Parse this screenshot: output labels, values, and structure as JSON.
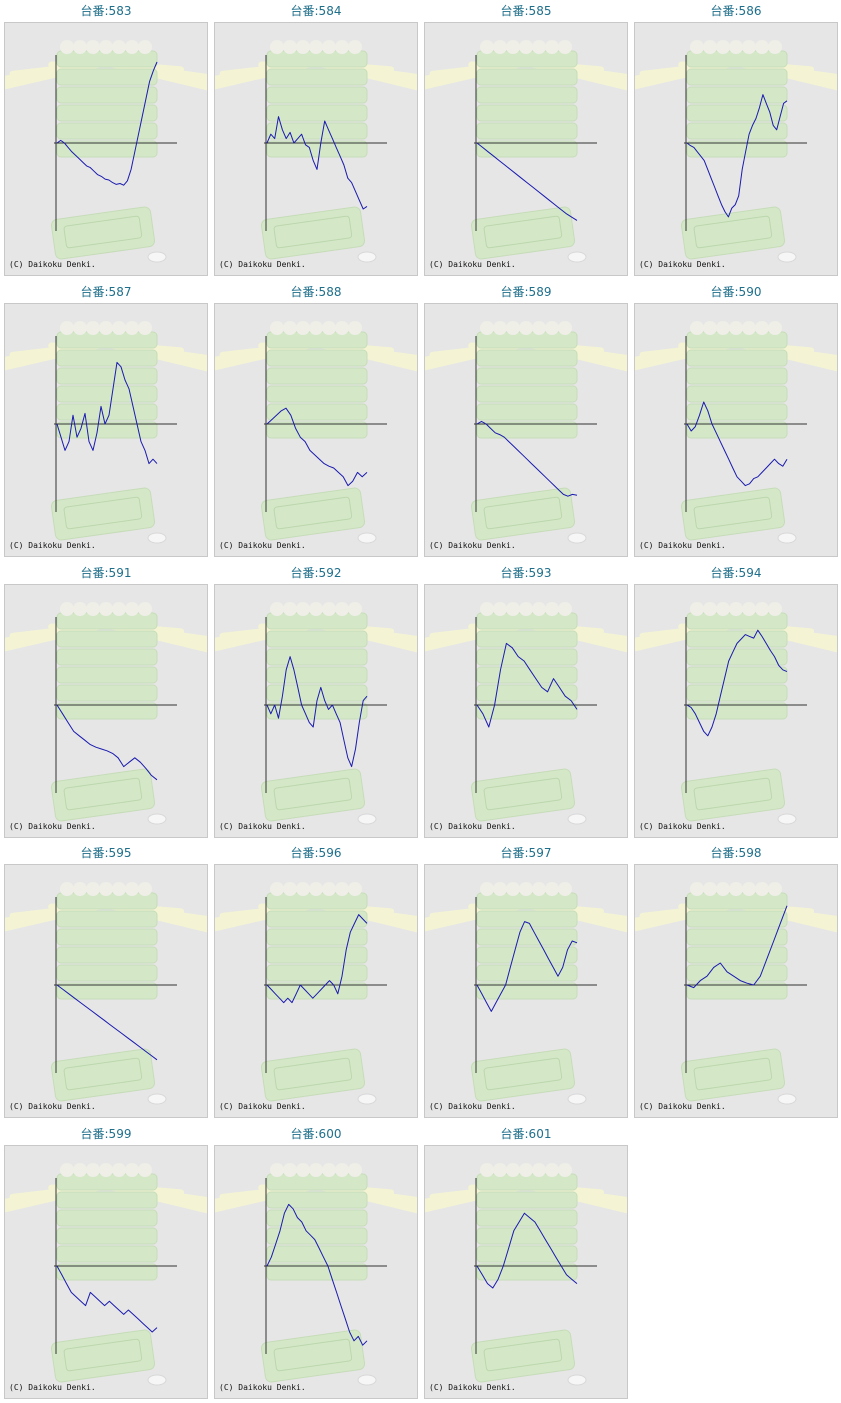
{
  "copyright": "(C) Daikoku Denki.",
  "colors": {
    "line": "#1a1ab0",
    "axis": "#333333",
    "title": "#1f6f8b",
    "panel_bg": "#e6e6e6",
    "art_green": "#d4e8c8",
    "art_rays": "#f4f4d4"
  },
  "chart_data": [
    {
      "type": "line",
      "title": "台番:583",
      "values": [
        0.0,
        0.03,
        0.0,
        -0.05,
        -0.1,
        -0.14,
        -0.18,
        -0.22,
        -0.26,
        -0.28,
        -0.32,
        -0.36,
        -0.38,
        -0.41,
        -0.42,
        -0.45,
        -0.47,
        -0.46,
        -0.48,
        -0.43,
        -0.3,
        -0.1,
        0.1,
        0.3,
        0.5,
        0.7,
        0.82,
        0.92
      ]
    },
    {
      "type": "line",
      "title": "台番:584",
      "values": [
        0.0,
        0.1,
        0.05,
        0.3,
        0.15,
        0.05,
        0.12,
        0.0,
        0.05,
        0.1,
        -0.02,
        -0.05,
        -0.2,
        -0.3,
        0.0,
        0.25,
        0.15,
        0.05,
        -0.05,
        -0.15,
        -0.25,
        -0.4,
        -0.45,
        -0.55,
        -0.65,
        -0.75,
        -0.72
      ]
    },
    {
      "type": "line",
      "title": "台番:585",
      "values": [
        0.0,
        -0.05,
        -0.1,
        -0.15,
        -0.2,
        -0.25,
        -0.3,
        -0.35,
        -0.4,
        -0.45,
        -0.5,
        -0.55,
        -0.6,
        -0.65,
        -0.7,
        -0.75,
        -0.8,
        -0.84,
        -0.88
      ]
    },
    {
      "type": "line",
      "title": "台番:586",
      "values": [
        0.0,
        -0.03,
        -0.05,
        -0.1,
        -0.15,
        -0.2,
        -0.3,
        -0.4,
        -0.5,
        -0.6,
        -0.7,
        -0.78,
        -0.84,
        -0.74,
        -0.7,
        -0.6,
        -0.3,
        -0.1,
        0.1,
        0.2,
        0.28,
        0.4,
        0.55,
        0.45,
        0.35,
        0.2,
        0.15,
        0.3,
        0.45,
        0.48
      ]
    },
    {
      "type": "line",
      "title": "台番:587",
      "values": [
        0.0,
        -0.15,
        -0.3,
        -0.2,
        0.1,
        -0.15,
        -0.05,
        0.12,
        -0.2,
        -0.3,
        -0.1,
        0.2,
        0.0,
        0.1,
        0.4,
        0.7,
        0.65,
        0.5,
        0.4,
        0.2,
        0.0,
        -0.2,
        -0.3,
        -0.45,
        -0.4,
        -0.45
      ]
    },
    {
      "type": "line",
      "title": "台番:588",
      "values": [
        0.0,
        0.05,
        0.1,
        0.15,
        0.18,
        0.1,
        -0.05,
        -0.15,
        -0.2,
        -0.3,
        -0.35,
        -0.4,
        -0.45,
        -0.48,
        -0.5,
        -0.55,
        -0.6,
        -0.7,
        -0.65,
        -0.55,
        -0.6,
        -0.55
      ]
    },
    {
      "type": "line",
      "title": "台番:589",
      "values": [
        0.0,
        0.03,
        0.0,
        -0.05,
        -0.1,
        -0.12,
        -0.15,
        -0.2,
        -0.25,
        -0.3,
        -0.35,
        -0.4,
        -0.45,
        -0.5,
        -0.55,
        -0.6,
        -0.65,
        -0.7,
        -0.75,
        -0.8,
        -0.82,
        -0.8,
        -0.81
      ]
    },
    {
      "type": "line",
      "title": "台番:590",
      "values": [
        0.0,
        -0.08,
        -0.03,
        0.1,
        0.25,
        0.15,
        0.0,
        -0.1,
        -0.2,
        -0.3,
        -0.4,
        -0.5,
        -0.6,
        -0.65,
        -0.7,
        -0.68,
        -0.62,
        -0.6,
        -0.55,
        -0.5,
        -0.45,
        -0.4,
        -0.45,
        -0.48,
        -0.4
      ]
    },
    {
      "type": "line",
      "title": "台番:591",
      "values": [
        0.0,
        -0.1,
        -0.2,
        -0.3,
        -0.35,
        -0.4,
        -0.45,
        -0.48,
        -0.5,
        -0.52,
        -0.55,
        -0.6,
        -0.7,
        -0.65,
        -0.6,
        -0.65,
        -0.72,
        -0.8,
        -0.85
      ]
    },
    {
      "type": "line",
      "title": "台番:592",
      "values": [
        0.0,
        -0.1,
        0.0,
        -0.15,
        0.1,
        0.4,
        0.55,
        0.4,
        0.2,
        0.0,
        -0.1,
        -0.2,
        -0.25,
        0.05,
        0.2,
        0.05,
        -0.05,
        0.0,
        -0.1,
        -0.2,
        -0.4,
        -0.6,
        -0.7,
        -0.5,
        -0.2,
        0.05,
        0.1
      ]
    },
    {
      "type": "line",
      "title": "台番:593",
      "values": [
        0.0,
        -0.1,
        -0.25,
        0.0,
        0.4,
        0.7,
        0.65,
        0.55,
        0.5,
        0.4,
        0.3,
        0.2,
        0.15,
        0.3,
        0.2,
        0.1,
        0.05,
        -0.05
      ]
    },
    {
      "type": "line",
      "title": "台番:594",
      "values": [
        0.0,
        -0.03,
        -0.1,
        -0.2,
        -0.3,
        -0.35,
        -0.25,
        -0.1,
        0.1,
        0.3,
        0.5,
        0.6,
        0.7,
        0.75,
        0.8,
        0.78,
        0.76,
        0.85,
        0.78,
        0.7,
        0.62,
        0.55,
        0.45,
        0.4,
        0.38
      ]
    },
    {
      "type": "line",
      "title": "台番:595",
      "values": [
        0.0,
        -0.05,
        -0.1,
        -0.15,
        -0.2,
        -0.25,
        -0.3,
        -0.35,
        -0.4,
        -0.45,
        -0.5,
        -0.55,
        -0.6,
        -0.65,
        -0.7,
        -0.75,
        -0.8,
        -0.85
      ]
    },
    {
      "type": "line",
      "title": "台番:596",
      "values": [
        0.0,
        -0.05,
        -0.1,
        -0.15,
        -0.2,
        -0.15,
        -0.2,
        -0.1,
        0.0,
        -0.05,
        -0.1,
        -0.15,
        -0.1,
        -0.05,
        0.0,
        0.05,
        0.0,
        -0.1,
        0.1,
        0.4,
        0.6,
        0.7,
        0.8,
        0.75,
        0.7
      ]
    },
    {
      "type": "line",
      "title": "台番:597",
      "values": [
        0.0,
        -0.1,
        -0.2,
        -0.3,
        -0.2,
        -0.1,
        0.0,
        0.2,
        0.4,
        0.6,
        0.72,
        0.7,
        0.6,
        0.5,
        0.4,
        0.3,
        0.2,
        0.1,
        0.2,
        0.4,
        0.5,
        0.48
      ]
    },
    {
      "type": "line",
      "title": "台番:598",
      "values": [
        0.0,
        -0.03,
        0.05,
        0.1,
        0.2,
        0.25,
        0.15,
        0.1,
        0.05,
        0.02,
        0.0,
        0.1,
        0.3,
        0.5,
        0.7,
        0.9
      ]
    },
    {
      "type": "line",
      "title": "台番:599",
      "values": [
        0.0,
        -0.1,
        -0.2,
        -0.3,
        -0.35,
        -0.4,
        -0.45,
        -0.3,
        -0.35,
        -0.4,
        -0.45,
        -0.4,
        -0.45,
        -0.5,
        -0.55,
        -0.5,
        -0.55,
        -0.6,
        -0.65,
        -0.7,
        -0.75,
        -0.7
      ]
    },
    {
      "type": "line",
      "title": "台番:600",
      "values": [
        0.0,
        0.1,
        0.25,
        0.4,
        0.6,
        0.7,
        0.65,
        0.55,
        0.5,
        0.4,
        0.35,
        0.3,
        0.2,
        0.1,
        0.0,
        -0.15,
        -0.3,
        -0.45,
        -0.6,
        -0.75,
        -0.85,
        -0.8,
        -0.9,
        -0.85
      ]
    },
    {
      "type": "line",
      "title": "台番:601",
      "values": [
        0.0,
        -0.1,
        -0.2,
        -0.25,
        -0.15,
        0.0,
        0.2,
        0.4,
        0.5,
        0.6,
        0.55,
        0.5,
        0.4,
        0.3,
        0.2,
        0.1,
        0.0,
        -0.1,
        -0.15,
        -0.2
      ]
    }
  ]
}
